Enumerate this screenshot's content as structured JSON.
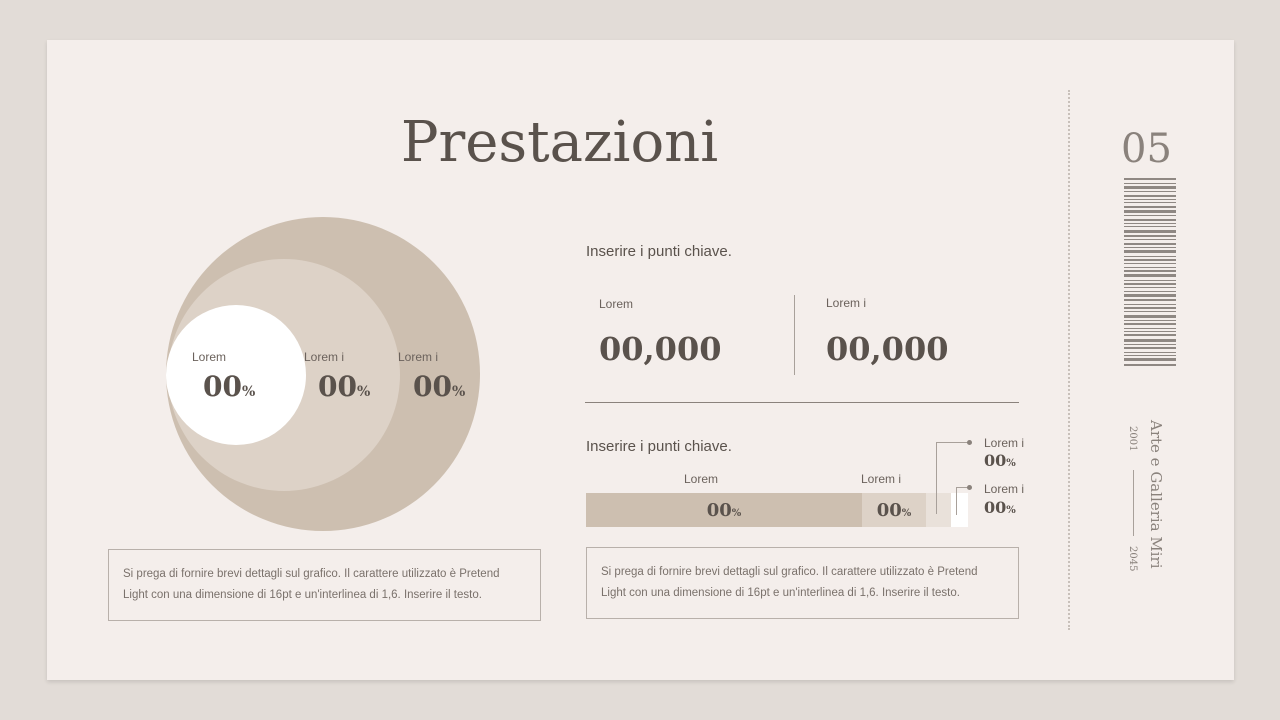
{
  "title": "Prestazioni",
  "circles": [
    {
      "label": "Lorem",
      "value": "00",
      "unit": "%",
      "color": "#ffffff"
    },
    {
      "label": "Lorem i",
      "value": "00",
      "unit": "%",
      "color": "#ddd2c7"
    },
    {
      "label": "Lorem i",
      "value": "00",
      "unit": "%",
      "color": "#cdbfb0"
    }
  ],
  "left_note": "Si prega di fornire brevi dettagli sul grafico. Il carattere utilizzato è Pretend Light con una dimensione di 16pt e un'interlinea di 1,6. Inserire il testo.",
  "stats": {
    "heading": "Inserire i punti chiave.",
    "items": [
      {
        "label": "Lorem",
        "value": "00,000"
      },
      {
        "label": "Lorem i",
        "value": "00,000"
      }
    ]
  },
  "bar": {
    "heading": "Inserire i punti chiave.",
    "segments": [
      {
        "label": "Lorem",
        "value": "00",
        "unit": "%",
        "color": "#cdbfb0"
      },
      {
        "label": "Lorem i",
        "value": "00",
        "unit": "%",
        "color": "#ddd2c7"
      },
      {
        "label": "Lorem i",
        "value": "00",
        "unit": "%",
        "color": "#e9e1da"
      },
      {
        "label": "Lorem i",
        "value": "00",
        "unit": "%",
        "color": "#ffffff"
      }
    ]
  },
  "right_note": "Si prega di fornire brevi dettagli sul grafico. Il carattere utilizzato è Pretend Light con una dimensione di 16pt e un'interlinea di 1,6. Inserire il testo.",
  "side": {
    "page_number": "05",
    "brand": "Arte e Galleria Miri",
    "year_start": "2001",
    "year_end": "2045",
    "barcode_icon": "barcode-icon"
  }
}
